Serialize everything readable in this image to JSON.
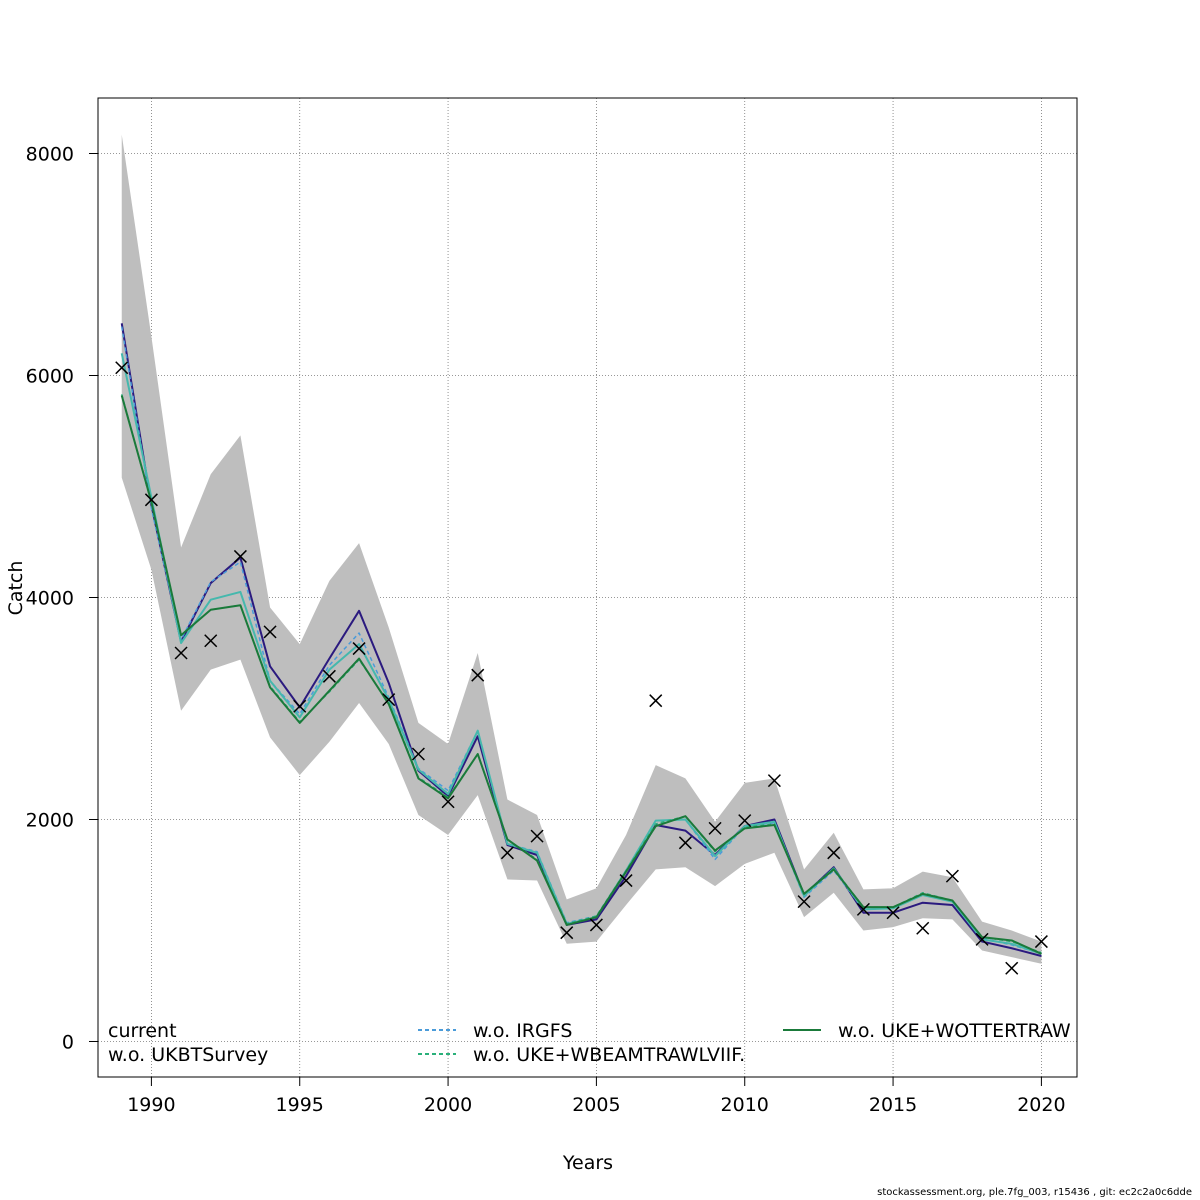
{
  "chart_data": {
    "type": "line",
    "title": "",
    "xlabel": "Years",
    "ylabel": "Catch",
    "xlim": [
      1988.2,
      2021.2
    ],
    "ylim": [
      -320,
      8500
    ],
    "xticks": [
      1990,
      1995,
      2000,
      2005,
      2010,
      2015,
      2020
    ],
    "yticks": [
      0,
      2000,
      4000,
      6000,
      8000
    ],
    "grid": true,
    "x": [
      1989,
      1990,
      1991,
      1992,
      1993,
      1994,
      1995,
      1996,
      1997,
      1998,
      1999,
      2000,
      2001,
      2002,
      2003,
      2004,
      2005,
      2006,
      2007,
      2008,
      2009,
      2010,
      2011,
      2012,
      2013,
      2014,
      2015,
      2016,
      2017,
      2018,
      2019,
      2020
    ],
    "confidence_band": {
      "color": "#bebebe",
      "lower": [
        5080,
        4250,
        2980,
        3350,
        3440,
        2740,
        2400,
        2700,
        3050,
        2680,
        2040,
        1860,
        2220,
        1460,
        1450,
        880,
        900,
        1230,
        1550,
        1570,
        1400,
        1600,
        1700,
        1120,
        1340,
        1000,
        1030,
        1110,
        1100,
        820,
        760,
        700
      ],
      "upper": [
        8170,
        6350,
        4450,
        5110,
        5460,
        3910,
        3580,
        4150,
        4490,
        3730,
        2870,
        2680,
        3500,
        2180,
        2040,
        1280,
        1380,
        1860,
        2490,
        2370,
        1980,
        2330,
        2370,
        1550,
        1880,
        1370,
        1380,
        1530,
        1480,
        1080,
        1000,
        900
      ]
    },
    "series": [
      {
        "name": "current",
        "color": "#2b1a7f",
        "width": 2,
        "values": [
          6470,
          4830,
          3600,
          4130,
          4360,
          3380,
          3010,
          3450,
          3880,
          3230,
          2440,
          2210,
          2750,
          1770,
          1680,
          1050,
          1100,
          1490,
          1950,
          1900,
          1680,
          1940,
          2000,
          1320,
          1570,
          1160,
          1160,
          1250,
          1230,
          900,
          840,
          770
        ]
      },
      {
        "name": "w.o. IRGFS",
        "color": "#4a9bd9",
        "width": 1.5,
        "dash": "4,3",
        "values": [
          6440,
          4800,
          3620,
          4140,
          4320,
          3250,
          2950,
          3390,
          3680,
          3100,
          2460,
          2260,
          2800,
          1780,
          1710,
          1070,
          1130,
          1530,
          1990,
          2000,
          1640,
          1940,
          1970,
          1300,
          1540,
          1190,
          1200,
          1330,
          1260,
          930,
          870,
          790
        ]
      },
      {
        "name": "w.o. UKBTSurvey",
        "color": "#45b8ad",
        "width": 2,
        "values": [
          6200,
          4900,
          3590,
          3980,
          4050,
          3250,
          2920,
          3350,
          3580,
          3080,
          2450,
          2230,
          2800,
          1780,
          1700,
          1060,
          1120,
          1540,
          1990,
          2000,
          1670,
          1940,
          1980,
          1310,
          1560,
          1190,
          1200,
          1320,
          1260,
          920,
          880,
          790
        ]
      },
      {
        "name": "w.o. UKE+WBEAMTRAWLVIIF.",
        "color": "#2ab07a",
        "width": 1.5,
        "dash": "4,3",
        "values": [
          5830,
          4850,
          3660,
          3890,
          3930,
          3200,
          2880,
          3150,
          3440,
          3050,
          2380,
          2200,
          2590,
          1820,
          1640,
          1060,
          1130,
          1540,
          1960,
          2030,
          1710,
          1930,
          1960,
          1330,
          1560,
          1210,
          1210,
          1340,
          1270,
          940,
          900,
          800
        ]
      },
      {
        "name": "w.o. UKE+WOTTERTRAW",
        "color": "#1a7a3a",
        "width": 2,
        "values": [
          5820,
          4860,
          3660,
          3890,
          3930,
          3190,
          2870,
          3160,
          3450,
          3040,
          2370,
          2190,
          2590,
          1820,
          1630,
          1050,
          1120,
          1530,
          1940,
          2030,
          1720,
          1920,
          1950,
          1330,
          1550,
          1210,
          1210,
          1330,
          1270,
          940,
          910,
          790
        ]
      }
    ],
    "observations": {
      "marker": "x",
      "values": [
        6070,
        4880,
        3500,
        3610,
        4370,
        3690,
        3020,
        3290,
        3540,
        3080,
        2590,
        2160,
        3300,
        1700,
        1850,
        980,
        1050,
        1450,
        3070,
        1790,
        1920,
        1990,
        2350,
        1260,
        1700,
        1190,
        1160,
        1020,
        1490,
        920,
        660,
        900
      ]
    },
    "legend": {
      "placement": "bottom",
      "entries": [
        "current",
        "w.o. UKBTSurvey",
        "w.o. IRGFS",
        "w.o. UKE+WBEAMTRAWLVIIF.",
        "w.o. UKE+WOTTERTRAW"
      ]
    }
  },
  "footer": "stockassessment.org, ple.7fg_003, r15436 , git: ec2c2a0c6dde"
}
